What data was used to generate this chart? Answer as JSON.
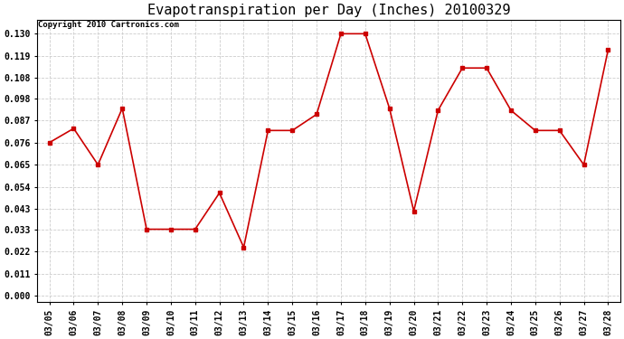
{
  "title": "Evapotranspiration per Day (Inches) 20100329",
  "copyright": "Copyright 2010 Cartronics.com",
  "x_labels": [
    "03/05",
    "03/06",
    "03/07",
    "03/08",
    "03/09",
    "03/10",
    "03/11",
    "03/12",
    "03/13",
    "03/14",
    "03/15",
    "03/16",
    "03/17",
    "03/18",
    "03/19",
    "03/20",
    "03/21",
    "03/22",
    "03/23",
    "03/24",
    "03/25",
    "03/26",
    "03/27",
    "03/28"
  ],
  "y_values": [
    0.076,
    0.083,
    0.065,
    0.093,
    0.033,
    0.033,
    0.033,
    0.051,
    0.024,
    0.082,
    0.082,
    0.09,
    0.13,
    0.13,
    0.093,
    0.042,
    0.092,
    0.113,
    0.113,
    0.092,
    0.082,
    0.082,
    0.065,
    0.122
  ],
  "y_ticks": [
    0.0,
    0.011,
    0.022,
    0.033,
    0.043,
    0.054,
    0.065,
    0.076,
    0.087,
    0.098,
    0.108,
    0.119,
    0.13
  ],
  "line_color": "#cc0000",
  "marker": "s",
  "marker_size": 2.5,
  "background_color": "#ffffff",
  "plot_bg_color": "#ffffff",
  "grid_color": "#cccccc",
  "title_fontsize": 11,
  "tick_fontsize": 7,
  "copyright_fontsize": 6.5
}
